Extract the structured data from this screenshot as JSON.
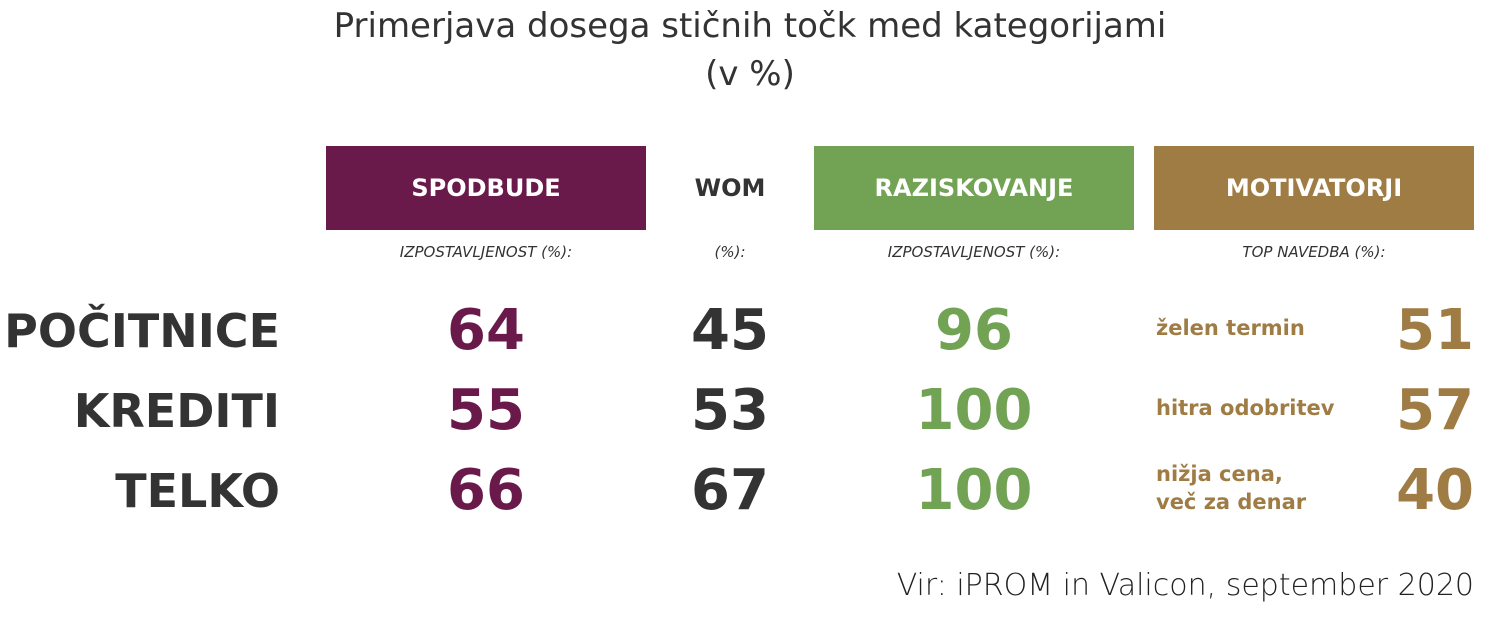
{
  "header": {
    "title": [
      "Primerjava dosega stičnih točk med kategorijami",
      "(v %)"
    ]
  },
  "columns": [
    {
      "name": "SPODBUDE",
      "note": "IZPOSTAVLJENOST (%):"
    },
    {
      "name": "WOM",
      "note": "(%):"
    },
    {
      "name": "RAZISKOVANJE",
      "note": "IZPOSTAVLJENOST (%):"
    },
    {
      "name": "MOTIVATORJI",
      "note": "TOP NAVEDBA (%):"
    }
  ],
  "rows": [
    {
      "label": "POČITNICE",
      "spodbude": 64,
      "wom": 45,
      "raziskovanje": 96,
      "motivator": [
        "želen termin"
      ],
      "motivator_value": 51
    },
    {
      "label": "KREDITI",
      "spodbude": 55,
      "wom": 53,
      "raziskovanje": 100,
      "motivator": [
        "hitra odobritev"
      ],
      "motivator_value": 57
    },
    {
      "label": "TELKO",
      "spodbude": 66,
      "wom": 67,
      "raziskovanje": 100,
      "motivator": [
        "nižja cena,",
        "več za denar"
      ],
      "motivator_value": 40
    }
  ],
  "source": "Vir: iPROM in Valicon, september 2020"
}
